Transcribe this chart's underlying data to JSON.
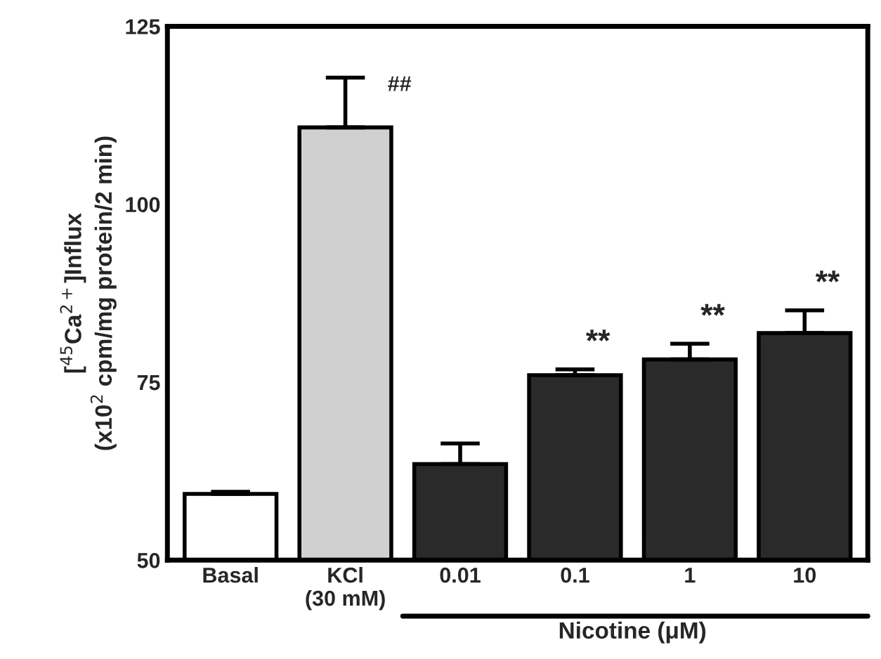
{
  "chart_data": {
    "type": "bar",
    "ylabel": "[$^{45}$Ca$^{2+}$]Influx\n(x10$^{2}$ cpm/mg protein/2 min)",
    "categories": [
      "Basal",
      "KCl\n(30 mM)",
      "0.01",
      "0.1",
      "1",
      "10"
    ],
    "values": [
      59.3,
      110.8,
      63.5,
      76.0,
      78.2,
      81.9
    ],
    "errors": [
      0.3,
      7.0,
      2.9,
      0.8,
      2.2,
      3.2
    ],
    "colors": [
      "#ffffff",
      "#d0d0d0",
      "#2a2a2a",
      "#2a2a2a",
      "#2a2a2a",
      "#2a2a2a"
    ],
    "ylim": [
      50,
      125
    ],
    "yticks": [
      50,
      75,
      100,
      125
    ],
    "grid": false,
    "annotations": [
      {
        "text": "##",
        "x": "KCl\n(30 mM)",
        "y": 117.8
      },
      {
        "text": "**",
        "x": "0.1",
        "y": 76.8
      },
      {
        "text": "**",
        "x": "1",
        "y": 80.4
      },
      {
        "text": "**",
        "x": "10",
        "y": 85.1
      },
      "Nicotine (μM)"
    ]
  }
}
